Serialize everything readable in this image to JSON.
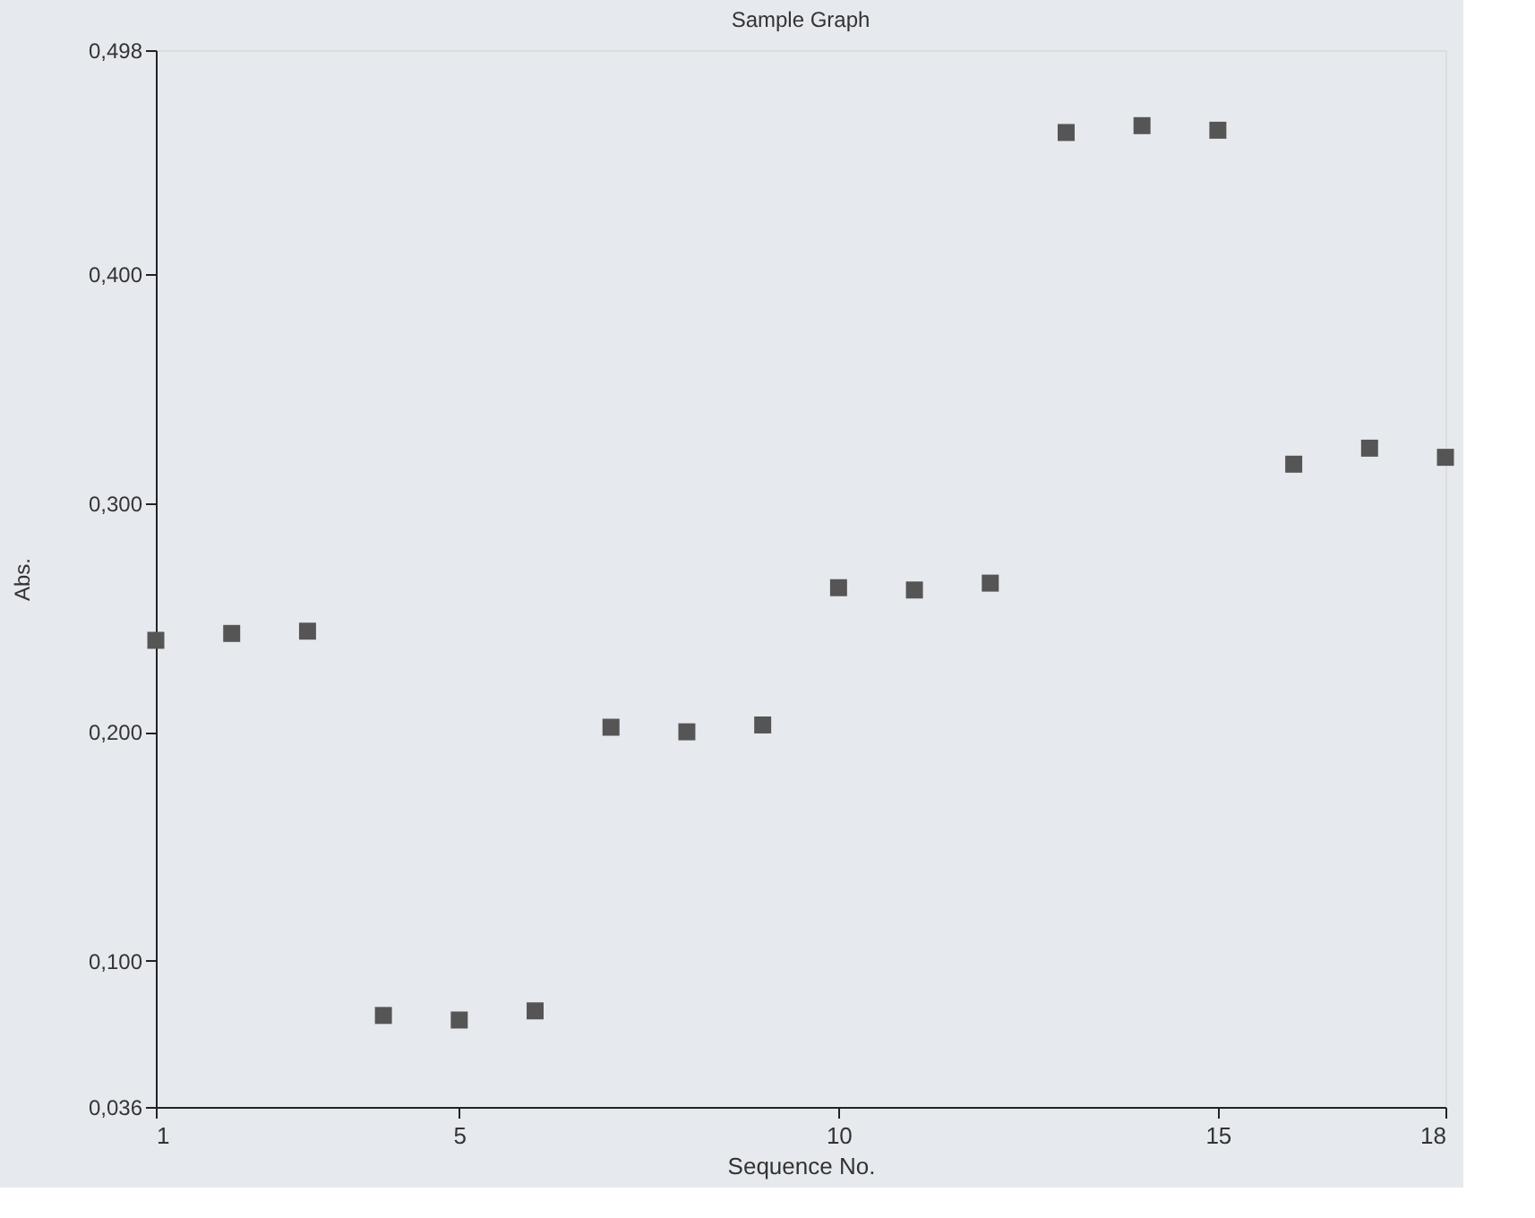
{
  "chart_data": {
    "type": "scatter",
    "title": "Sample Graph",
    "xlabel": "Sequence No.",
    "ylabel": "Abs.",
    "x": [
      1,
      2,
      3,
      4,
      5,
      6,
      7,
      8,
      9,
      10,
      11,
      12,
      13,
      14,
      15,
      16,
      17,
      18
    ],
    "series": [
      {
        "color": "#555555",
        "values": [
          0.24,
          0.243,
          0.244,
          0.076,
          0.074,
          0.078,
          0.202,
          0.2,
          0.203,
          0.263,
          0.262,
          0.265,
          0.462,
          0.465,
          0.463,
          0.317,
          0.324,
          0.32
        ]
      }
    ],
    "xlim": [
      1,
      18
    ],
    "xticks": [
      1,
      5,
      10,
      15,
      18
    ],
    "ylim": [
      0.036,
      0.498
    ],
    "yticks": [
      {
        "value": 0.036,
        "label": "0,036"
      },
      {
        "value": 0.1,
        "label": "0,100"
      },
      {
        "value": 0.2,
        "label": "0,200"
      },
      {
        "value": 0.3,
        "label": "0,300"
      },
      {
        "value": 0.4,
        "label": "0,400"
      },
      {
        "value": 0.498,
        "label": "0,498"
      }
    ],
    "marker": "square",
    "grid": false
  }
}
